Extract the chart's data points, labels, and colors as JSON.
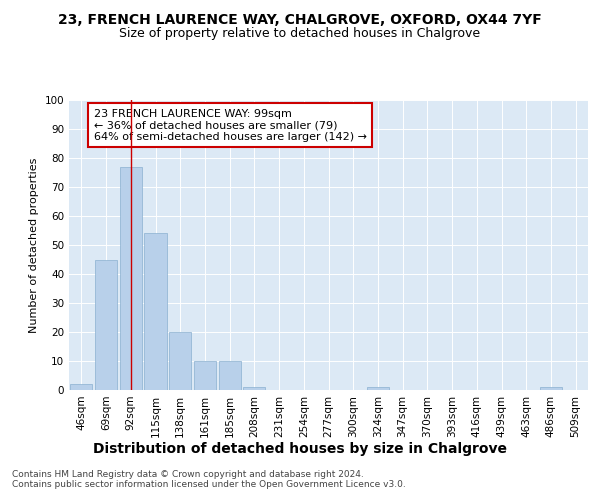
{
  "title": "23, FRENCH LAURENCE WAY, CHALGROVE, OXFORD, OX44 7YF",
  "subtitle": "Size of property relative to detached houses in Chalgrove",
  "xlabel": "Distribution of detached houses by size in Chalgrove",
  "ylabel": "Number of detached properties",
  "categories": [
    "46sqm",
    "69sqm",
    "92sqm",
    "115sqm",
    "138sqm",
    "161sqm",
    "185sqm",
    "208sqm",
    "231sqm",
    "254sqm",
    "277sqm",
    "300sqm",
    "324sqm",
    "347sqm",
    "370sqm",
    "393sqm",
    "416sqm",
    "439sqm",
    "463sqm",
    "486sqm",
    "509sqm"
  ],
  "values": [
    2,
    45,
    77,
    54,
    20,
    10,
    10,
    1,
    0,
    0,
    0,
    0,
    1,
    0,
    0,
    0,
    0,
    0,
    0,
    1,
    0
  ],
  "bar_color": "#b8d0ea",
  "bar_edge_color": "#8ab0d0",
  "vline_x_idx": 2,
  "vline_color": "#cc0000",
  "annotation_text": "23 FRENCH LAURENCE WAY: 99sqm\n← 36% of detached houses are smaller (79)\n64% of semi-detached houses are larger (142) →",
  "annotation_box_color": "#ffffff",
  "annotation_box_edge_color": "#cc0000",
  "ylim": [
    0,
    100
  ],
  "background_color": "#dce9f5",
  "grid_color": "#ffffff",
  "footer_text": "Contains HM Land Registry data © Crown copyright and database right 2024.\nContains public sector information licensed under the Open Government Licence v3.0.",
  "title_fontsize": 10,
  "subtitle_fontsize": 9,
  "xlabel_fontsize": 10,
  "ylabel_fontsize": 8,
  "tick_fontsize": 7.5,
  "annotation_fontsize": 8,
  "footer_fontsize": 6.5
}
